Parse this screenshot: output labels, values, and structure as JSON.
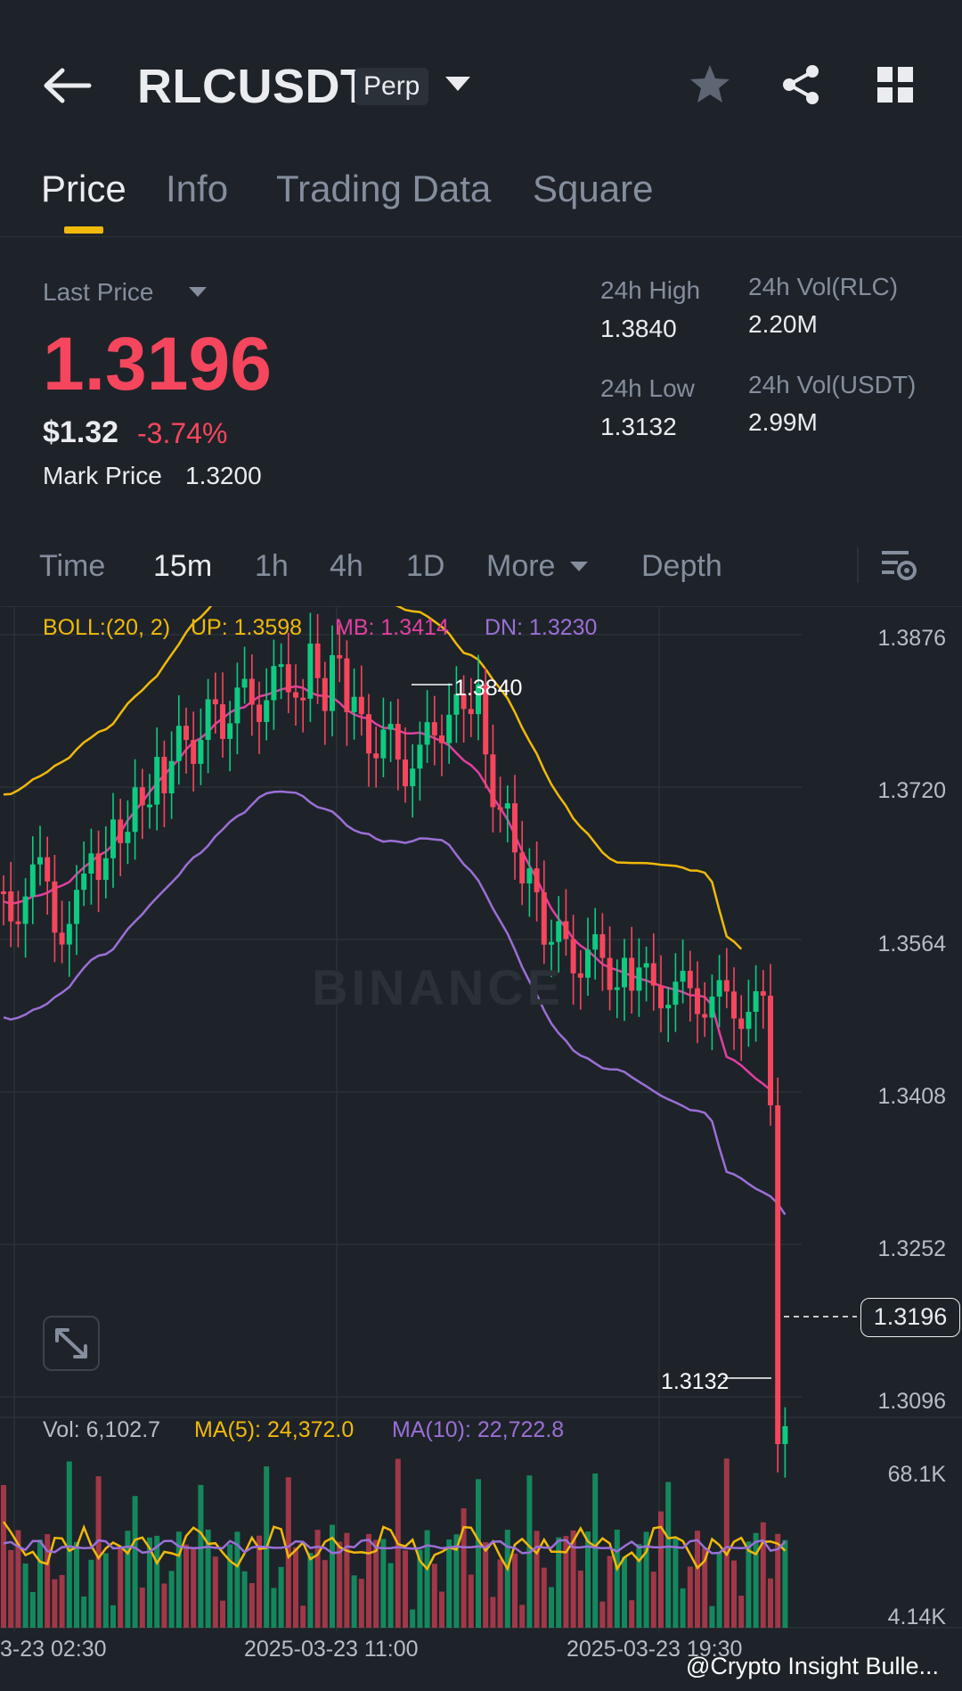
{
  "header": {
    "symbol": "RLCUSDT",
    "badge": "Perp"
  },
  "tabs": [
    {
      "label": "Price"
    },
    {
      "label": "Info"
    },
    {
      "label": "Trading Data"
    },
    {
      "label": "Square"
    }
  ],
  "price": {
    "last_price_label": "Last Price",
    "last_price": "1.3196",
    "usd_value": "$1.32",
    "change_pct": "-3.74%",
    "mark_price_label": "Mark Price",
    "mark_price": "1.3200",
    "high_label": "24h High",
    "high": "1.3840",
    "low_label": "24h Low",
    "low": "1.3132",
    "vol_rlc_label": "24h Vol(RLC)",
    "vol_rlc": "2.20M",
    "vol_usdt_label": "24h Vol(USDT)",
    "vol_usdt": "2.99M"
  },
  "intervals": {
    "time": "Time",
    "m15": "15m",
    "h1": "1h",
    "h4": "4h",
    "d1": "1D",
    "more": "More",
    "depth": "Depth"
  },
  "indicators": {
    "boll": "BOLL:(20, 2)",
    "up": "UP: 1.3598",
    "mb": "MB: 1.3414",
    "dn": "DN: 1.3230",
    "vol": "Vol: 6,102.7",
    "ma5": "MA(5): 24,372.0",
    "ma10": "MA(10): 22,722.8"
  },
  "colors": {
    "up": "#0ecb81",
    "down": "#f6465d",
    "boll_up": "#f0b90b",
    "boll_mb": "#e040a0",
    "boll_dn": "#9b6fd6",
    "accent": "#f0b90b"
  },
  "chart": {
    "price_axis": [
      "1.3876",
      "1.3720",
      "1.3564",
      "1.3408",
      "1.3252",
      "1.3096"
    ],
    "vol_axis": [
      "68.1K",
      "4.14K"
    ],
    "high_marker": "1.3840",
    "low_marker": "1.3132",
    "current_price": "1.3196",
    "watermark": "BINANCE",
    "dates": [
      "3-23 02:30",
      "2025-03-23 11:00",
      "2025-03-23 19:30"
    ]
  },
  "credit": "@Crypto Insight Bulle..."
}
